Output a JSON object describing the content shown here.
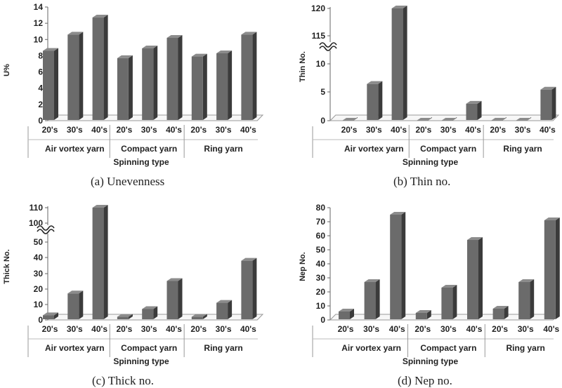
{
  "captions": {
    "a": "(a)  Unevenness",
    "b": "(b)  Thin  no.",
    "c": "(c)  Thick  no.",
    "d": "(d)  Nep  no."
  },
  "chart_data": [
    {
      "type": "bar",
      "ylabel": "U%",
      "xlabel": "Spinning type",
      "groups": [
        "Air vortex yarn",
        "Compact yarn",
        "Ring yarn"
      ],
      "categories": [
        "20's",
        "30's",
        "40's",
        "20's",
        "30's",
        "40's",
        "20's",
        "30's",
        "40's"
      ],
      "values": [
        8.6,
        10.6,
        12.7,
        7.7,
        8.9,
        10.2,
        7.9,
        8.3,
        10.6
      ],
      "yticks": [
        "0",
        "2",
        "4",
        "6",
        "8",
        "10",
        "12",
        "14"
      ],
      "ylim": [
        0,
        14
      ],
      "axis_break": false
    },
    {
      "type": "bar",
      "ylabel": "Thin No.",
      "xlabel": "Spinning type",
      "groups": [
        "Air vortex yarn",
        "Compact yarn",
        "Ring yarn"
      ],
      "categories": [
        "20's",
        "30's",
        "40's",
        "20's",
        "30's",
        "40's",
        "20's",
        "30's",
        "40's"
      ],
      "values": [
        0,
        6.5,
        120,
        0,
        0,
        3,
        0,
        0,
        5.5
      ],
      "yticks": [
        "0",
        "5",
        "10",
        "115",
        "120"
      ],
      "axis_break": true
    },
    {
      "type": "bar",
      "ylabel": "Thick  No.",
      "xlabel": "Spinning type",
      "groups": [
        "Air vortex yarn",
        "Compact yarn",
        "Ring yarn"
      ],
      "categories": [
        "20's",
        "30's",
        "40's",
        "20's",
        "30's",
        "40's",
        "20's",
        "30's",
        "40's"
      ],
      "values": [
        3,
        17,
        110,
        2,
        7,
        25,
        2,
        11,
        38
      ],
      "yticks": [
        "0",
        "10",
        "20",
        "30",
        "40",
        "50",
        "100",
        "110"
      ],
      "axis_break": true
    },
    {
      "type": "bar",
      "ylabel": "Nep  No.",
      "xlabel": "Spinning type",
      "groups": [
        "Air vortex yarn",
        "Compact yarn",
        "Ring yarn"
      ],
      "categories": [
        "20's",
        "30's",
        "40's",
        "20's",
        "30's",
        "40's",
        "20's",
        "30's",
        "40's"
      ],
      "values": [
        6,
        27,
        75,
        5,
        23,
        57,
        8,
        27,
        71
      ],
      "yticks": [
        "0",
        "10",
        "20",
        "30",
        "40",
        "50",
        "60",
        "70",
        "80"
      ],
      "ylim": [
        0,
        80
      ],
      "axis_break": false
    }
  ]
}
